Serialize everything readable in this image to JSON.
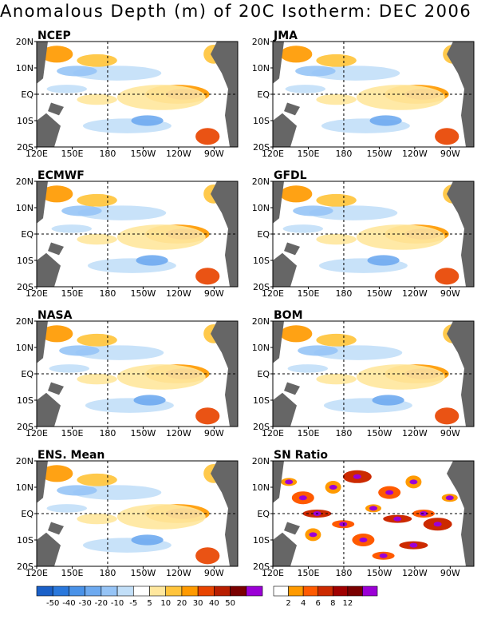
{
  "title": "Anomalous Depth (m) of 20C Isotherm: DEC 2006",
  "chart_data": {
    "type": "heatmap",
    "title": "Anomalous Depth (m) of 20C Isotherm: DEC 2006",
    "x_ticks": [
      "120E",
      "150E",
      "180",
      "150W",
      "120W",
      "90W"
    ],
    "y_ticks": [
      "20N",
      "10N",
      "EQ",
      "10S",
      "20S"
    ],
    "xlim": [
      "120E",
      "70W"
    ],
    "ylim": [
      "20S",
      "20N"
    ],
    "reference_lines": [
      "EQ",
      "180"
    ],
    "panels": [
      {
        "name": "NCEP",
        "label": "NCEP"
      },
      {
        "name": "JMA",
        "label": "JMA"
      },
      {
        "name": "ECMWF",
        "label": "ECMWF"
      },
      {
        "name": "GFDL",
        "label": "GFDL"
      },
      {
        "name": "NASA",
        "label": "NASA"
      },
      {
        "name": "BOM",
        "label": "BOM"
      },
      {
        "name": "ENS. Mean",
        "label": "ENS. Mean"
      },
      {
        "name": "SN Ratio",
        "label": "SN Ratio"
      }
    ],
    "anomaly_colorbar": {
      "ticks": [
        "-50",
        "-40",
        "-30",
        "-20",
        "-10",
        "-5",
        "5",
        "10",
        "20",
        "30",
        "40",
        "50"
      ],
      "colors": [
        "#1a60c8",
        "#2a78dc",
        "#4a92e8",
        "#6eaaf0",
        "#96c4f6",
        "#c2dff8",
        "#ffffff",
        "#ffe79e",
        "#ffc43c",
        "#ff9a00",
        "#e84400",
        "#b81e00",
        "#7a0000",
        "#9b00d6"
      ]
    },
    "sn_colorbar": {
      "ticks": [
        "2",
        "4",
        "6",
        "8",
        "12"
      ],
      "colors": [
        "#ffffff",
        "#ff9a00",
        "#ff5a00",
        "#cc2a00",
        "#a00000",
        "#7a0000",
        "#9b00d6"
      ]
    },
    "features": [
      {
        "panel": "all anomaly panels",
        "description_value": "positive anomaly core 30-50 m near EQ, 120W-95W"
      },
      {
        "panel": "all anomaly panels",
        "description_value": "negative anomalies -5 to -20 m along 5N-10N and 5S-12S, 150E-110W"
      }
    ]
  }
}
